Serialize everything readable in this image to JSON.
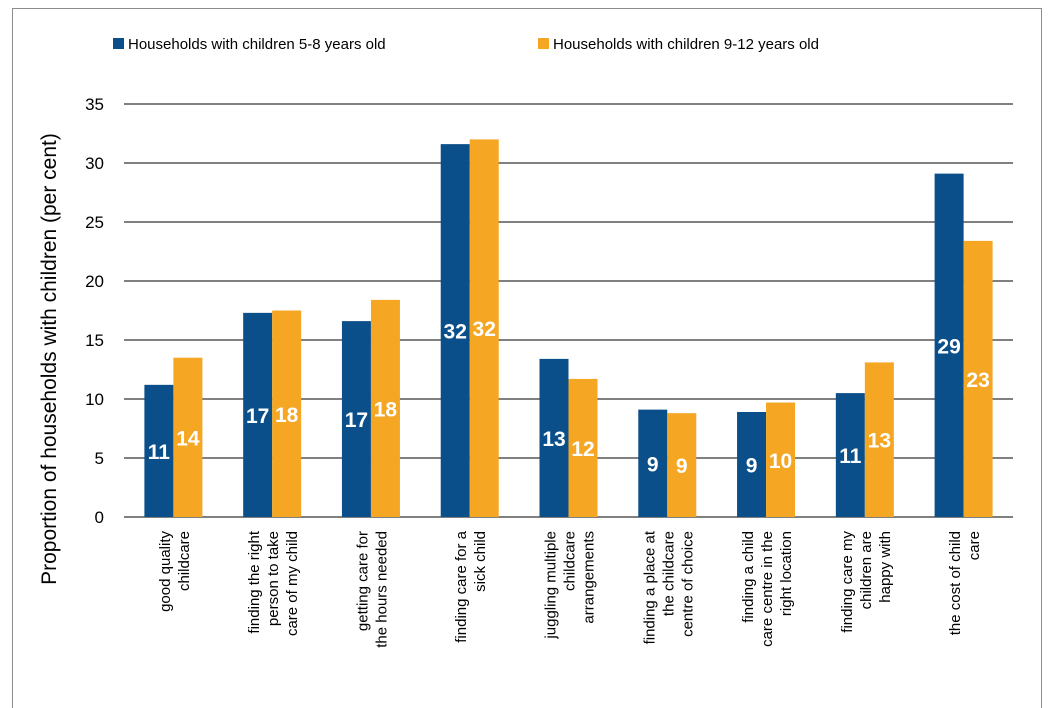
{
  "chart_data": {
    "type": "bar",
    "categories": [
      [
        "good quality",
        "childcare"
      ],
      [
        "finding the right",
        "person to take",
        "care of my child"
      ],
      [
        "getting care for",
        "the hours needed"
      ],
      [
        "finding care for a",
        "sick child"
      ],
      [
        "juggling multiple",
        "childcare",
        "arrangements"
      ],
      [
        "finding a place at",
        "the childcare",
        "centre of choice"
      ],
      [
        "finding a child",
        "care centre in the",
        "right location"
      ],
      [
        "finding care my",
        "children are",
        "happy with"
      ],
      [
        "the cost of child",
        "care"
      ]
    ],
    "series": [
      {
        "name": "Households with children 5-8 years old",
        "color": "#0b4f8a",
        "values": [
          11.2,
          17.3,
          16.6,
          31.6,
          13.4,
          9.1,
          8.9,
          10.5,
          29.1
        ],
        "labels": [
          "11",
          "17",
          "17",
          "32",
          "13",
          "9",
          "9",
          "11",
          "29"
        ]
      },
      {
        "name": "Households with children 9-12 years old",
        "color": "#f5a623",
        "values": [
          13.5,
          17.5,
          18.4,
          32.0,
          11.7,
          8.8,
          9.7,
          13.1,
          23.4
        ],
        "labels": [
          "14",
          "18",
          "18",
          "32",
          "12",
          "9",
          "10",
          "13",
          "23"
        ]
      }
    ],
    "ylabel": "Proportion of households with children (per cent)",
    "ylim": [
      0,
      35
    ],
    "yticks": [
      "0",
      "5",
      "10",
      "15",
      "20",
      "25",
      "30",
      "35"
    ],
    "grid": true,
    "legend_position": "top"
  }
}
